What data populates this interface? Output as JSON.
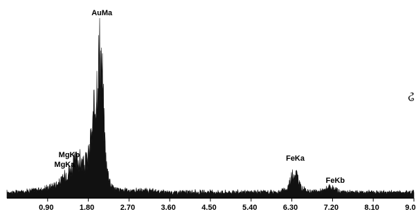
{
  "chart_data": {
    "type": "line",
    "title": "",
    "xlabel": "",
    "ylabel": "",
    "xlim": [
      0.0,
      9.0
    ],
    "ylim": [
      0,
      100
    ],
    "grid": false,
    "x_ticks": [
      "0.90",
      "1.80",
      "2.70",
      "3.60",
      "4.50",
      "5.40",
      "6.30",
      "7.20",
      "8.10",
      "9.00"
    ],
    "series": [
      {
        "x": [
          0.2,
          0.5,
          0.8,
          1.0,
          1.2,
          1.3,
          1.4,
          1.5,
          1.6,
          1.7,
          1.8,
          1.9,
          2.0,
          2.05,
          2.1,
          2.15,
          2.2,
          2.3,
          2.4,
          2.6,
          3.0,
          3.5,
          4.0,
          4.5,
          5.0,
          5.5,
          6.0,
          6.2,
          6.3,
          6.4,
          6.5,
          6.7,
          7.0,
          7.1,
          7.2,
          7.4,
          7.8,
          8.2,
          8.6,
          9.0
        ],
        "values": [
          3,
          4,
          5,
          7,
          10,
          15,
          18,
          22,
          24,
          20,
          26,
          45,
          80,
          95,
          86,
          45,
          20,
          8,
          5,
          4,
          4,
          3,
          3,
          3,
          3,
          3,
          3,
          5,
          14,
          15,
          6,
          3,
          4,
          6,
          5,
          3,
          3,
          3,
          3,
          3
        ]
      }
    ],
    "peaks": [
      {
        "label": "AuMa",
        "x": 2.1
      },
      {
        "label": "MgKb",
        "x": 1.5
      },
      {
        "label": "MgKa",
        "x": 1.4
      },
      {
        "label": "FeKa",
        "x": 6.35
      },
      {
        "label": "FeKb",
        "x": 7.1
      }
    ],
    "stray_glyph": "ઢ"
  }
}
